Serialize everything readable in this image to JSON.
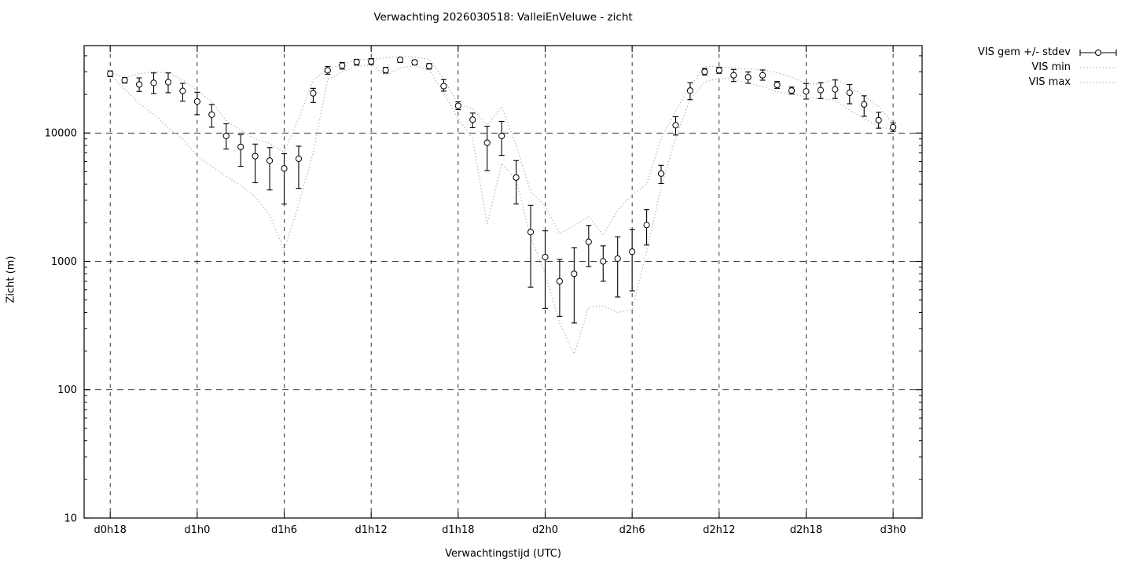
{
  "title": "Verwachting 2026030518: ValleiEnVeluwe - zicht",
  "colors": {
    "background": "#ffffff",
    "mean_series": "#000000",
    "minmax_series": "#b3b3b3",
    "grid": "#000000",
    "border": "#000000"
  },
  "legend": {
    "entries": [
      {
        "label": "VIS gem +/- stdev",
        "sample": "errorbar"
      },
      {
        "label": "VIS min",
        "sample": "dotted"
      },
      {
        "label": "VIS max",
        "sample": "dotted"
      }
    ]
  },
  "chart_data": {
    "type": "line",
    "subtype": "errorbar-with-envelope",
    "title": "Verwachting 2026030518: ValleiEnVeluwe - zicht",
    "xlabel": "Verwachtingstijd (UTC)",
    "ylabel": "Zicht (m)",
    "yscale": "log",
    "grid": true,
    "legend_position": "outside-top-right",
    "xlim": [
      16.2,
      74
    ],
    "ylim": [
      10,
      48000
    ],
    "y_ticks": [
      10,
      100,
      1000,
      10000
    ],
    "y_tick_labels": [
      "10",
      "100",
      "1000",
      "10000"
    ],
    "x_ticks": [
      {
        "hour": 18,
        "label": "d0h18"
      },
      {
        "hour": 24,
        "label": "d1h0"
      },
      {
        "hour": 30,
        "label": "d1h6"
      },
      {
        "hour": 36,
        "label": "d1h12"
      },
      {
        "hour": 42,
        "label": "d1h18"
      },
      {
        "hour": 48,
        "label": "d2h0"
      },
      {
        "hour": 54,
        "label": "d2h6"
      },
      {
        "hour": 60,
        "label": "d2h12"
      },
      {
        "hour": 66,
        "label": "d2h18"
      },
      {
        "hour": 72,
        "label": "d3h0"
      }
    ],
    "x_start_hour": 18,
    "x_step_hours": 1,
    "series": [
      {
        "name": "VIS gem +/- stdev",
        "style": "errorbar",
        "values": [
          29000,
          25800,
          23900,
          24600,
          24900,
          21300,
          17600,
          13900,
          9500,
          7800,
          6600,
          6100,
          5300,
          6300,
          20400,
          30800,
          33500,
          35800,
          36100,
          30900,
          37200,
          35500,
          33200,
          23200,
          16300,
          12700,
          8400,
          9500,
          4500,
          1690,
          1080,
          700,
          800,
          1420,
          1000,
          1050,
          1190,
          1920,
          4830,
          11500,
          21400,
          30000,
          30800,
          28200,
          27200,
          28200,
          23700,
          21400,
          21100,
          21600,
          21900,
          20600,
          16700,
          12600,
          11100
        ],
        "err_hi": [
          30500,
          27000,
          26900,
          29400,
          29400,
          24400,
          20800,
          16700,
          11800,
          9700,
          8200,
          7700,
          6900,
          7900,
          22300,
          33000,
          35500,
          37500,
          38000,
          32500,
          38500,
          37000,
          34800,
          26100,
          17500,
          14300,
          11300,
          12300,
          6100,
          2730,
          1730,
          1035,
          1280,
          1905,
          1320,
          1555,
          1775,
          2530,
          5600,
          13400,
          24700,
          31800,
          32500,
          31300,
          29900,
          31000,
          25200,
          22800,
          24300,
          24700,
          25900,
          23900,
          19500,
          14500,
          12000
        ],
        "err_lo": [
          27500,
          24500,
          21100,
          20300,
          20600,
          17700,
          13900,
          11100,
          7500,
          5500,
          4100,
          3600,
          2800,
          3700,
          17300,
          28700,
          31500,
          33800,
          34200,
          29300,
          35500,
          34000,
          31500,
          21200,
          15200,
          11000,
          5100,
          6700,
          2800,
          630,
          430,
          373,
          331,
          910,
          700,
          527,
          589,
          1340,
          4040,
          9640,
          18200,
          28300,
          29200,
          25200,
          24400,
          25800,
          22300,
          20100,
          18400,
          18600,
          18600,
          16900,
          13500,
          10900,
          10300
        ]
      },
      {
        "name": "VIS min",
        "style": "dotted",
        "values": [
          28500,
          22000,
          17000,
          14000,
          11000,
          9000,
          6600,
          5500,
          4600,
          3900,
          3200,
          2300,
          1220,
          2800,
          7000,
          26000,
          30000,
          33000,
          34000,
          28100,
          32300,
          33500,
          31000,
          20600,
          13000,
          9000,
          1950,
          5800,
          4300,
          1550,
          800,
          330,
          190,
          440,
          450,
          400,
          420,
          1200,
          3800,
          9200,
          18100,
          25000,
          26700,
          26300,
          24500,
          23000,
          21000,
          20300,
          19000,
          18500,
          18000,
          15100,
          13000,
          11300,
          10600
        ]
      },
      {
        "name": "VIS max",
        "style": "dotted",
        "values": [
          29500,
          27000,
          29000,
          30000,
          29500,
          26000,
          21500,
          17500,
          12500,
          10500,
          9000,
          8300,
          7100,
          13000,
          26000,
          31500,
          34500,
          37000,
          37500,
          38500,
          39500,
          39000,
          37500,
          26400,
          16800,
          15500,
          11500,
          16000,
          8000,
          3500,
          2700,
          1650,
          1900,
          2240,
          1600,
          2500,
          3300,
          4000,
          9000,
          14900,
          23000,
          33000,
          33000,
          32000,
          31500,
          31000,
          29500,
          27200,
          24300,
          24000,
          26500,
          22900,
          19500,
          16100,
          11900
        ]
      }
    ]
  }
}
